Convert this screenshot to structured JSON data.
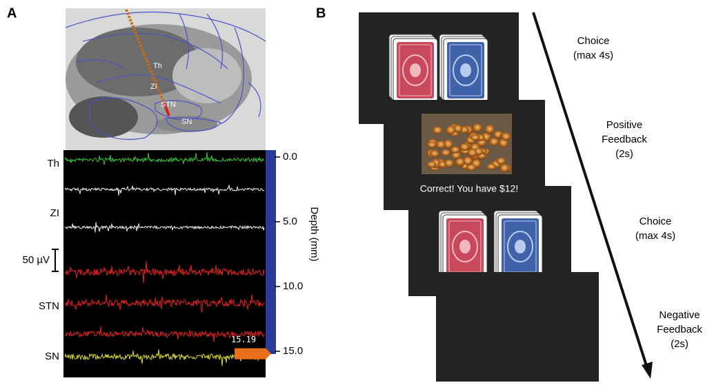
{
  "panel_a": {
    "label": "A",
    "atlas_labels": [
      "Th",
      "ZI",
      "STN",
      "SN"
    ],
    "trace_labels": [
      "Th",
      "ZI",
      "STN",
      "SN"
    ],
    "scale_bar": "50 µV",
    "depth_axis": {
      "label": "Depth (mm)",
      "ticks": [
        {
          "value": 0,
          "label": "0.0"
        },
        {
          "value": 5,
          "label": "5.0"
        },
        {
          "value": 10,
          "label": "10.0"
        },
        {
          "value": 15,
          "label": "15.0"
        }
      ],
      "marker": {
        "value": 15.19,
        "label": "15.19"
      }
    }
  },
  "panel_b": {
    "label": "B",
    "feedback_text": "Correct! You have $12!",
    "phases": [
      [
        "Choice",
        "(max 4s)"
      ],
      [
        "Positive",
        "Feedback",
        "(2s)"
      ],
      [
        "Choice",
        "(max 4s)"
      ],
      [
        "Negative",
        "Feedback",
        "(2s)"
      ]
    ]
  }
}
